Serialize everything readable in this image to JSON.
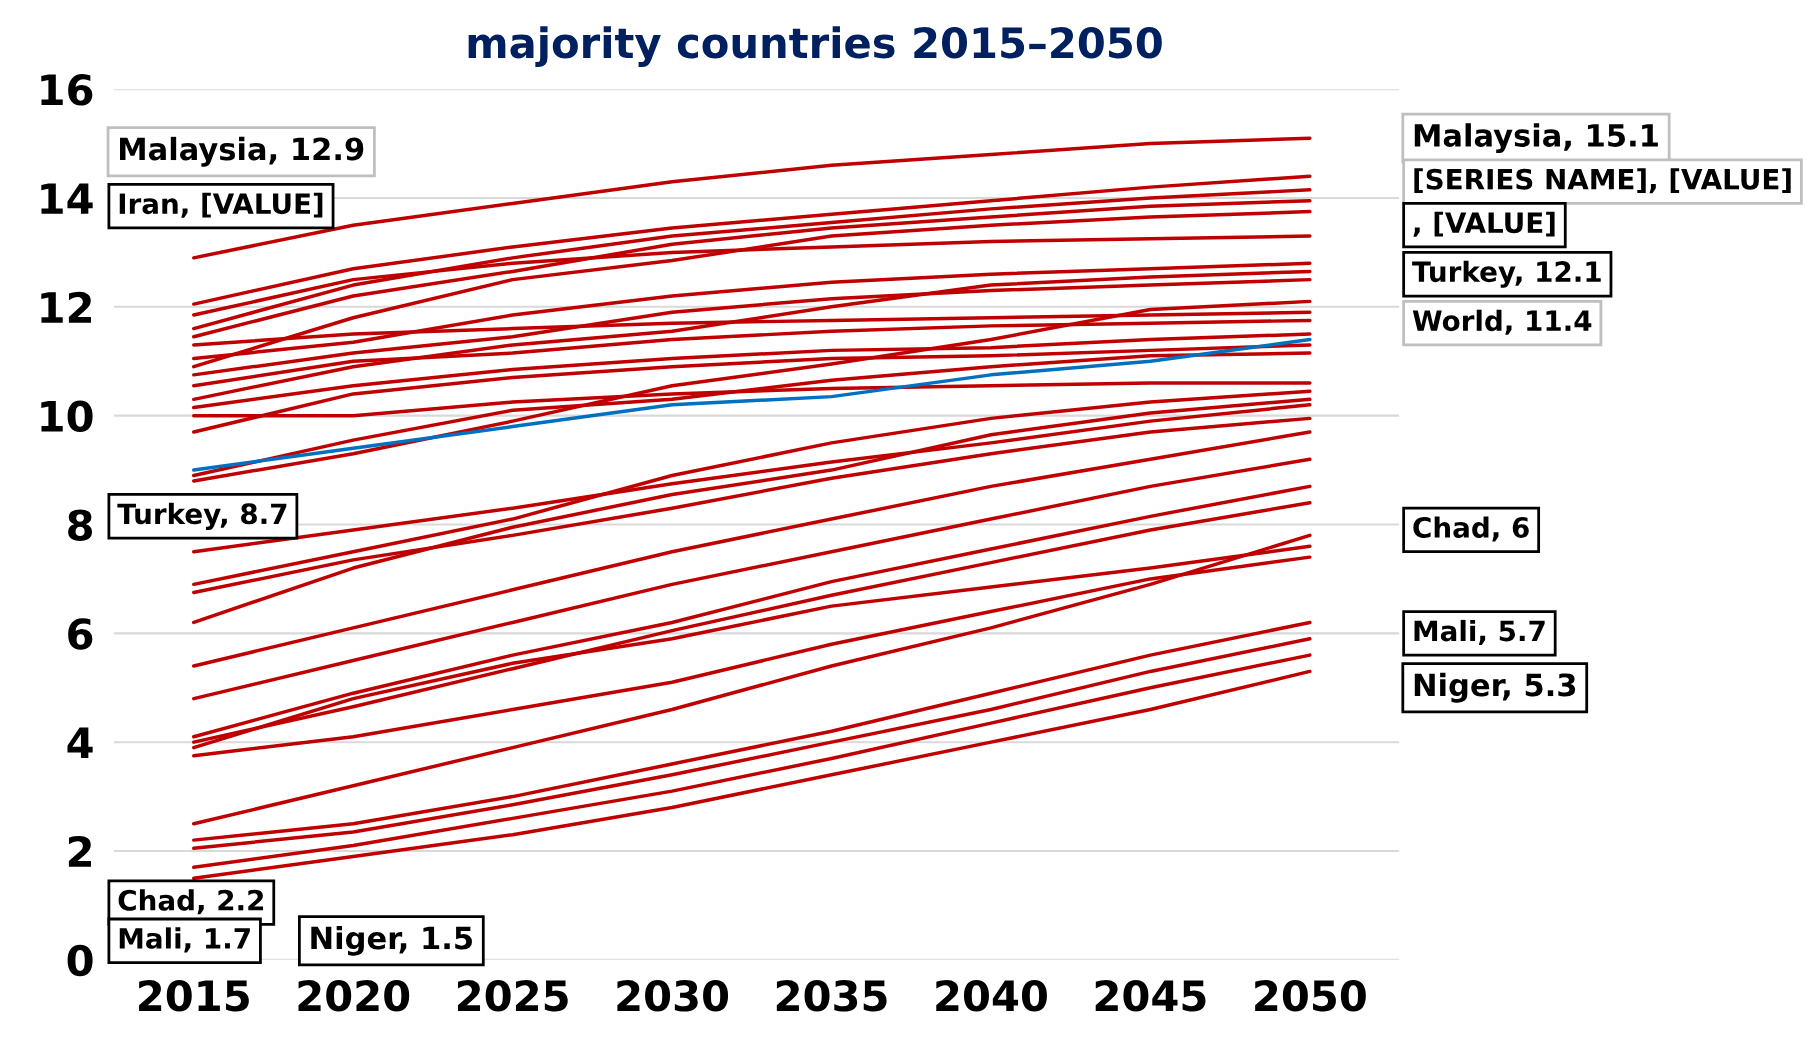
{
  "chart_data": {
    "type": "line",
    "title": "majority countries 2015–2050",
    "x": [
      2015,
      2020,
      2025,
      2030,
      2035,
      2040,
      2045,
      2050
    ],
    "xlim": [
      2012.5,
      2052.8
    ],
    "xticks": [
      2015,
      2020,
      2025,
      2030,
      2035,
      2040,
      2045,
      2050
    ],
    "ylim": [
      0,
      16
    ],
    "yticks": [
      0,
      2,
      4,
      6,
      8,
      10,
      12,
      14,
      16
    ],
    "grid": "y",
    "line_style": "solid",
    "marker": "none",
    "series": [
      {
        "color": "#c00000",
        "values": [
          12.9,
          13.5,
          13.9,
          14.3,
          14.6,
          14.8,
          15.0,
          15.1
        ]
      },
      {
        "color": "#c00000",
        "values": [
          12.05,
          12.7,
          13.1,
          13.45,
          13.7,
          13.95,
          14.2,
          14.4
        ]
      },
      {
        "color": "#c00000",
        "values": [
          11.85,
          12.5,
          12.8,
          13.0,
          13.1,
          13.2,
          13.25,
          13.3
        ]
      },
      {
        "color": "#c00000",
        "values": [
          11.6,
          12.4,
          12.9,
          13.3,
          13.55,
          13.8,
          14.0,
          14.15
        ]
      },
      {
        "color": "#c00000",
        "values": [
          11.45,
          12.2,
          12.65,
          13.15,
          13.45,
          13.65,
          13.85,
          13.95
        ]
      },
      {
        "color": "#c00000",
        "values": [
          10.9,
          11.8,
          12.5,
          12.85,
          13.3,
          13.5,
          13.65,
          13.75
        ]
      },
      {
        "color": "#c00000",
        "values": [
          11.3,
          11.5,
          11.6,
          11.7,
          11.75,
          11.8,
          11.85,
          11.9
        ]
      },
      {
        "color": "#c00000",
        "values": [
          11.05,
          11.35,
          11.85,
          12.2,
          12.45,
          12.6,
          12.7,
          12.8
        ]
      },
      {
        "color": "#c00000",
        "values": [
          10.75,
          11.15,
          11.45,
          11.9,
          12.15,
          12.3,
          12.4,
          12.5
        ]
      },
      {
        "color": "#c00000",
        "values": [
          10.3,
          10.9,
          11.3,
          11.55,
          12.0,
          12.4,
          12.55,
          12.65
        ]
      },
      {
        "color": "#c00000",
        "values": [
          10.55,
          11.0,
          11.15,
          11.4,
          11.55,
          11.65,
          11.7,
          11.75
        ]
      },
      {
        "color": "#c00000",
        "values": [
          8.8,
          9.3,
          9.9,
          10.55,
          10.95,
          11.4,
          11.95,
          12.1
        ]
      },
      {
        "color": "#c00000",
        "values": [
          10.15,
          10.55,
          10.85,
          11.05,
          11.2,
          11.25,
          11.4,
          11.5
        ]
      },
      {
        "color": "#c00000",
        "values": [
          10.0,
          10.0,
          10.25,
          10.4,
          10.5,
          10.55,
          10.6,
          10.6
        ]
      },
      {
        "color": "#c00000",
        "values": [
          9.7,
          10.4,
          10.7,
          10.9,
          11.05,
          11.1,
          11.2,
          11.3
        ]
      },
      {
        "color": "#c00000",
        "values": [
          8.9,
          9.55,
          10.1,
          10.3,
          10.65,
          10.9,
          11.1,
          11.15
        ]
      },
      {
        "color": "#c00000",
        "values": [
          7.5,
          7.9,
          8.3,
          8.75,
          9.15,
          9.5,
          9.9,
          10.2
        ]
      },
      {
        "color": "#c00000",
        "values": [
          6.9,
          7.5,
          8.1,
          8.9,
          9.5,
          9.95,
          10.25,
          10.45
        ]
      },
      {
        "color": "#c00000",
        "values": [
          6.75,
          7.35,
          7.8,
          8.3,
          8.85,
          9.3,
          9.7,
          9.95
        ]
      },
      {
        "color": "#c00000",
        "values": [
          6.2,
          7.2,
          7.95,
          8.55,
          9.0,
          9.65,
          10.05,
          10.3
        ]
      },
      {
        "color": "#c00000",
        "values": [
          5.4,
          6.1,
          6.8,
          7.5,
          8.1,
          8.7,
          9.2,
          9.7
        ]
      },
      {
        "color": "#c00000",
        "values": [
          4.8,
          5.5,
          6.2,
          6.9,
          7.5,
          8.1,
          8.7,
          9.2
        ]
      },
      {
        "color": "#c00000",
        "values": [
          4.1,
          4.9,
          5.6,
          6.2,
          6.95,
          7.55,
          8.15,
          8.7
        ]
      },
      {
        "color": "#c00000",
        "values": [
          4.0,
          4.65,
          5.35,
          6.05,
          6.7,
          7.3,
          7.9,
          8.4
        ]
      },
      {
        "color": "#c00000",
        "values": [
          3.75,
          4.1,
          4.6,
          5.1,
          5.8,
          6.4,
          7.0,
          7.4
        ]
      },
      {
        "color": "#c00000",
        "values": [
          3.9,
          4.8,
          5.45,
          5.9,
          6.5,
          6.85,
          7.2,
          7.6
        ]
      },
      {
        "color": "#c00000",
        "values": [
          2.5,
          3.2,
          3.9,
          4.6,
          5.4,
          6.1,
          6.9,
          7.8
        ]
      },
      {
        "color": "#c00000",
        "values": [
          2.2,
          2.5,
          3.0,
          3.6,
          4.2,
          4.9,
          5.6,
          6.2
        ]
      },
      {
        "color": "#c00000",
        "values": [
          2.05,
          2.35,
          2.85,
          3.4,
          4.0,
          4.6,
          5.3,
          5.9
        ]
      },
      {
        "color": "#c00000",
        "values": [
          1.7,
          2.1,
          2.6,
          3.1,
          3.7,
          4.35,
          5.0,
          5.6
        ]
      },
      {
        "color": "#c00000",
        "values": [
          1.5,
          1.9,
          2.3,
          2.8,
          3.4,
          4.0,
          4.6,
          5.3
        ]
      },
      {
        "color": "#0070c0",
        "values": [
          9.0,
          9.4,
          9.8,
          10.2,
          10.35,
          10.75,
          11.0,
          11.4
        ]
      }
    ],
    "annotations": [
      "Malaysia, 12.9",
      "Iran, [VALUE]",
      "Turkey, 8.7",
      "Chad, 2.2",
      "Mali, 1.7",
      "Niger, 1.5",
      "Malaysia, 15.1",
      "[SERIES NAME], [VALUE]",
      ", [VALUE]",
      "Turkey, 12.1",
      "World, 11.4",
      "Chad, 6",
      "Mali, 5.7",
      "Niger, 5.3"
    ]
  }
}
